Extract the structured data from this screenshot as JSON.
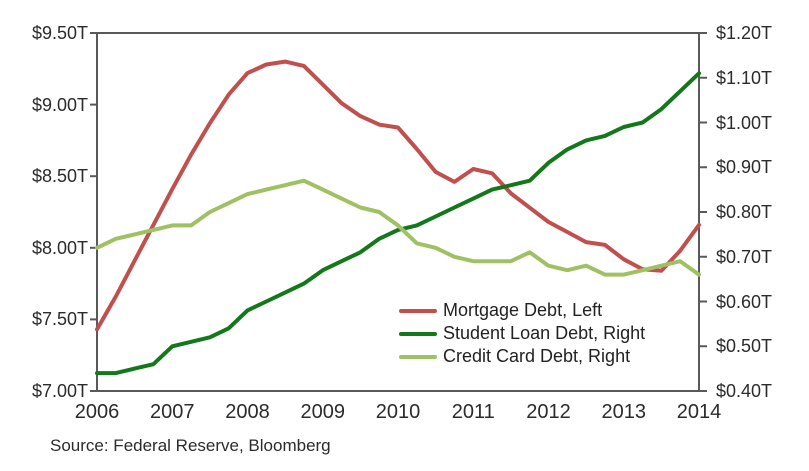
{
  "chart_data": {
    "type": "line",
    "title": "",
    "grid": false,
    "legend_position": "inside-bottom-right",
    "x_years": [
      2006,
      2006.25,
      2006.5,
      2006.75,
      2007,
      2007.25,
      2007.5,
      2007.75,
      2008,
      2008.25,
      2008.5,
      2008.75,
      2009,
      2009.25,
      2009.5,
      2009.75,
      2010,
      2010.25,
      2010.5,
      2010.75,
      2011,
      2011.25,
      2011.5,
      2011.75,
      2012,
      2012.25,
      2012.5,
      2012.75,
      2013,
      2013.25,
      2013.5,
      2013.75,
      2014
    ],
    "series": [
      {
        "id": "mortgage",
        "name": "Mortgage Debt, Left",
        "axis": "left",
        "unit": "trillion USD",
        "color": "#c0504d",
        "values": [
          7.43,
          7.66,
          7.91,
          8.16,
          8.41,
          8.65,
          8.87,
          9.07,
          9.22,
          9.28,
          9.3,
          9.27,
          9.14,
          9.01,
          8.92,
          8.86,
          8.84,
          8.69,
          8.53,
          8.46,
          8.55,
          8.52,
          8.38,
          8.28,
          8.18,
          8.11,
          8.04,
          8.02,
          7.92,
          7.85,
          7.84,
          7.98,
          8.16
        ]
      },
      {
        "id": "student-loan",
        "name": "Student Loan Debt, Right",
        "axis": "right",
        "unit": "trillion USD",
        "color": "#127819",
        "values": [
          0.44,
          0.44,
          0.45,
          0.46,
          0.5,
          0.51,
          0.52,
          0.54,
          0.58,
          0.6,
          0.62,
          0.64,
          0.67,
          0.69,
          0.71,
          0.74,
          0.76,
          0.77,
          0.79,
          0.81,
          0.83,
          0.85,
          0.86,
          0.87,
          0.91,
          0.94,
          0.96,
          0.97,
          0.99,
          1.0,
          1.03,
          1.07,
          1.11
        ]
      },
      {
        "id": "credit-card",
        "name": "Credit Card Debt, Right",
        "axis": "right",
        "unit": "trillion USD",
        "color": "#a0c064",
        "values": [
          0.72,
          0.74,
          0.75,
          0.76,
          0.77,
          0.77,
          0.8,
          0.82,
          0.84,
          0.85,
          0.86,
          0.87,
          0.85,
          0.83,
          0.81,
          0.8,
          0.77,
          0.73,
          0.72,
          0.7,
          0.69,
          0.69,
          0.69,
          0.71,
          0.68,
          0.67,
          0.68,
          0.66,
          0.66,
          0.67,
          0.68,
          0.69,
          0.66
        ]
      }
    ],
    "left_axis": {
      "range": [
        7.0,
        9.5
      ],
      "tick_values": [
        9.5,
        9.0,
        8.5,
        8.0,
        7.5,
        7.0
      ],
      "labels": [
        "$9.50T",
        "$9.00T",
        "$8.50T",
        "$8.00T",
        "$7.50T",
        "$7.00T"
      ]
    },
    "right_axis": {
      "range": [
        0.4,
        1.2
      ],
      "tick_values": [
        1.2,
        1.1,
        1.0,
        0.9,
        0.8,
        0.7,
        0.6,
        0.5,
        0.4
      ],
      "labels": [
        "$1.20T",
        "$1.10T",
        "$1.00T",
        "$0.90T",
        "$0.80T",
        "$0.70T",
        "$0.60T",
        "$0.50T",
        "$0.40T"
      ]
    },
    "x_axis": {
      "range": [
        2006,
        2014
      ],
      "tick_values": [
        2006,
        2007,
        2008,
        2009,
        2010,
        2011,
        2012,
        2013,
        2014
      ],
      "labels": [
        "2006",
        "2007",
        "2008",
        "2009",
        "2010",
        "2011",
        "2012",
        "2013",
        "2014"
      ]
    }
  },
  "source_note": "Source: Federal Reserve, Bloomberg",
  "colors": {
    "mortgage_line": "#c0504d",
    "student_loan_line": "#127819",
    "credit_card_line": "#a0c064",
    "frame": "#58595b",
    "text": "#2b2b2b",
    "background": "#ffffff"
  }
}
